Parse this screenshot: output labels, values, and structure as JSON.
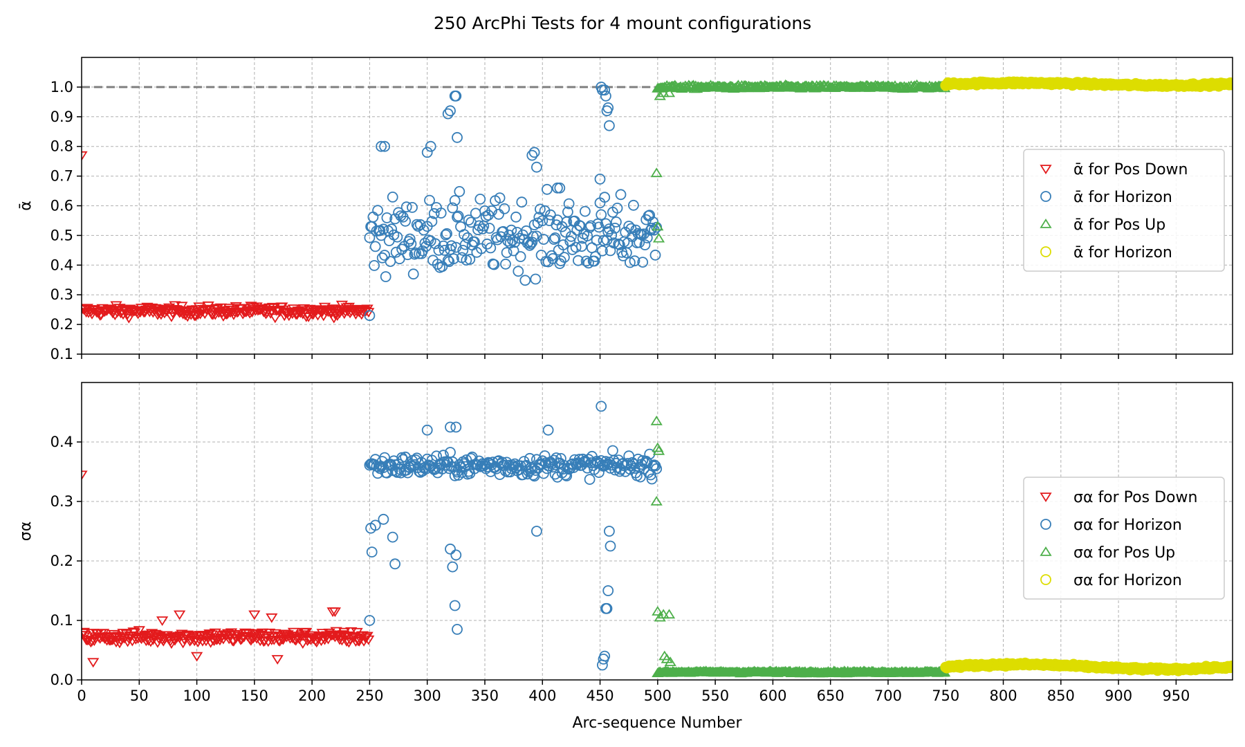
{
  "figure_title": "250 ArcPhi Tests for 4 mount configurations",
  "x_axis": {
    "label": "Arc-sequence Number",
    "ticks": [
      0,
      50,
      100,
      150,
      200,
      250,
      300,
      350,
      400,
      450,
      500,
      550,
      600,
      650,
      700,
      750,
      800,
      850,
      900,
      950
    ],
    "tick_labels": [
      "0",
      "50",
      "100",
      "150",
      "200",
      "250",
      "300",
      "350",
      "400",
      "450",
      "500",
      "550",
      "600",
      "650",
      "700",
      "750",
      "800",
      "850",
      "900",
      "950"
    ]
  },
  "colors": {
    "pos_down": "#e31a1c",
    "horizon_1": "#377eb8",
    "pos_up": "#4daf4a",
    "horizon_2": "#dddd00",
    "reference_line": "#808080",
    "grid": "#b0b0b0"
  },
  "chart_data": [
    {
      "type": "scatter",
      "panel": "top",
      "ylabel": "ᾱ",
      "xlim": [
        0,
        999
      ],
      "ylim": [
        0.1,
        1.1
      ],
      "yticks": [
        0.1,
        0.2,
        0.3,
        0.4,
        0.5,
        0.6,
        0.7,
        0.8,
        0.9,
        1.0
      ],
      "ytick_labels": [
        "0.1",
        "0.2",
        "0.3",
        "0.4",
        "0.5",
        "0.6",
        "0.7",
        "0.8",
        "0.9",
        "1.0"
      ],
      "grid": true,
      "legend_position": "right",
      "reference_line": {
        "y": 1.0,
        "style": "dashed"
      },
      "legend": [
        {
          "prefix": "ᾱ",
          "text": " for Pos Down",
          "marker": "triangle-down",
          "color_key": "pos_down"
        },
        {
          "prefix": "ᾱ",
          "text": " for Horizon",
          "marker": "circle",
          "color_key": "horizon_1"
        },
        {
          "prefix": "ᾱ",
          "text": " for Pos Up",
          "marker": "triangle-up",
          "color_key": "pos_up"
        },
        {
          "prefix": "ᾱ",
          "text": " for Horizon",
          "marker": "circle",
          "color_key": "horizon_2"
        }
      ],
      "series": [
        {
          "name": "ᾱ for Pos Down",
          "x_range": [
            0,
            249
          ],
          "marker": "triangle-down",
          "color_key": "pos_down",
          "center": 0.245,
          "spread": 0.03,
          "first_value": 0.77
        },
        {
          "name": "ᾱ for Horizon",
          "x_range": [
            250,
            499
          ],
          "marker": "circle",
          "color_key": "horizon_1",
          "center": 0.5,
          "spread": 0.13,
          "low": 0.34,
          "high": 0.93,
          "extra_points": [
            [
              250,
              0.23
            ],
            [
              324,
              0.97
            ],
            [
              325,
              0.97
            ],
            [
              451,
              1.0
            ],
            [
              452,
              0.99
            ],
            [
              454,
              0.99
            ],
            [
              455,
              0.97
            ],
            [
              456,
              0.92
            ],
            [
              457,
              0.93
            ],
            [
              458,
              0.87
            ],
            [
              450,
              0.69
            ],
            [
              260,
              0.8
            ],
            [
              263,
              0.8
            ],
            [
              300,
              0.78
            ],
            [
              303,
              0.8
            ],
            [
              318,
              0.91
            ],
            [
              320,
              0.92
            ],
            [
              326,
              0.83
            ],
            [
              391,
              0.77
            ],
            [
              393,
              0.78
            ],
            [
              395,
              0.73
            ],
            [
              413,
              0.66
            ],
            [
              415,
              0.66
            ]
          ]
        },
        {
          "name": "ᾱ for Pos Up",
          "x_range": [
            500,
            749
          ],
          "marker": "triangle-up",
          "color_key": "pos_up",
          "center": 1.0,
          "spread": 0.01,
          "extra_points": [
            [
              499,
              0.71
            ],
            [
              500,
              0.53
            ],
            [
              501,
              0.49
            ],
            [
              502,
              0.97
            ],
            [
              505,
              0.98
            ],
            [
              510,
              0.98
            ]
          ]
        },
        {
          "name": "ᾱ for Horizon",
          "x_range": [
            750,
            999
          ],
          "marker": "circle",
          "color_key": "horizon_2",
          "center": 1.01,
          "spread": 0.008
        }
      ]
    },
    {
      "type": "scatter",
      "panel": "bottom",
      "ylabel": "σα",
      "xlim": [
        0,
        999
      ],
      "ylim": [
        0,
        0.5
      ],
      "yticks": [
        0.0,
        0.1,
        0.2,
        0.3,
        0.4
      ],
      "ytick_labels": [
        "0.0",
        "0.1",
        "0.2",
        "0.3",
        "0.4"
      ],
      "grid": true,
      "legend_position": "right",
      "legend": [
        {
          "prefix": "σα",
          "text": " for Pos Down",
          "marker": "triangle-down",
          "color_key": "pos_down"
        },
        {
          "prefix": "σα",
          "text": " for Horizon",
          "marker": "circle",
          "color_key": "horizon_1"
        },
        {
          "prefix": "σα",
          "text": " for Pos Up",
          "marker": "triangle-up",
          "color_key": "pos_up"
        },
        {
          "prefix": "σα",
          "text": " for Horizon",
          "marker": "circle",
          "color_key": "horizon_2"
        }
      ],
      "series": [
        {
          "name": "σα for Pos Down",
          "x_range": [
            0,
            249
          ],
          "marker": "triangle-down",
          "color_key": "pos_down",
          "center": 0.072,
          "spread": 0.018,
          "first_value": 0.345,
          "extra_points": [
            [
              85,
              0.11
            ],
            [
              70,
              0.1
            ],
            [
              150,
              0.11
            ],
            [
              220,
              0.115
            ],
            [
              218,
              0.115
            ],
            [
              165,
              0.105
            ],
            [
              100,
              0.04
            ],
            [
              170,
              0.035
            ],
            [
              10,
              0.03
            ]
          ]
        },
        {
          "name": "σα for Horizon",
          "x_range": [
            250,
            499
          ],
          "marker": "circle",
          "color_key": "horizon_1",
          "center": 0.36,
          "spread": 0.03,
          "extra_points": [
            [
              250,
              0.1
            ],
            [
              251,
              0.255
            ],
            [
              252,
              0.215
            ],
            [
              255,
              0.26
            ],
            [
              262,
              0.27
            ],
            [
              270,
              0.24
            ],
            [
              272,
              0.195
            ],
            [
              320,
              0.22
            ],
            [
              322,
              0.19
            ],
            [
              325,
              0.21
            ],
            [
              324,
              0.125
            ],
            [
              326,
              0.085
            ],
            [
              395,
              0.25
            ],
            [
              451,
              0.46
            ],
            [
              452,
              0.025
            ],
            [
              453,
              0.035
            ],
            [
              454,
              0.04
            ],
            [
              455,
              0.12
            ],
            [
              456,
              0.12
            ],
            [
              457,
              0.15
            ],
            [
              458,
              0.25
            ],
            [
              459,
              0.225
            ],
            [
              300,
              0.42
            ],
            [
              320,
              0.425
            ],
            [
              325,
              0.425
            ],
            [
              405,
              0.42
            ]
          ]
        },
        {
          "name": "σα for Pos Up",
          "x_range": [
            500,
            749
          ],
          "marker": "triangle-up",
          "color_key": "pos_up",
          "center": 0.013,
          "spread": 0.003,
          "extra_points": [
            [
              499,
              0.435
            ],
            [
              500,
              0.39
            ],
            [
              501,
              0.385
            ],
            [
              499,
              0.3
            ],
            [
              500,
              0.115
            ],
            [
              502,
              0.105
            ],
            [
              505,
              0.11
            ],
            [
              510,
              0.11
            ],
            [
              506,
              0.04
            ],
            [
              508,
              0.035
            ],
            [
              511,
              0.03
            ],
            [
              507,
              0.015
            ]
          ]
        },
        {
          "name": "σα for Horizon",
          "x_range": [
            750,
            999
          ],
          "marker": "circle",
          "color_key": "horizon_2",
          "center": 0.022,
          "spread": 0.004
        }
      ]
    }
  ]
}
